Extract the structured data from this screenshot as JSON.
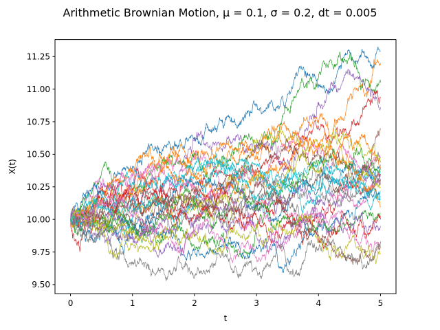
{
  "chart_data": {
    "type": "line",
    "title": "Arithmetic Brownian Motion, μ = 0.1, σ = 0.2, dt = 0.005",
    "xlabel": "t",
    "ylabel": "X(t)",
    "xlim": [
      -0.25,
      5.25
    ],
    "ylim": [
      9.43,
      11.38
    ],
    "x_ticks": [
      0,
      1,
      2,
      3,
      4,
      5
    ],
    "x_tick_labels": [
      "0",
      "1",
      "2",
      "3",
      "4",
      "5"
    ],
    "y_ticks": [
      9.5,
      9.75,
      10.0,
      10.25,
      10.5,
      10.75,
      11.0,
      11.25
    ],
    "y_tick_labels": [
      "9.50",
      "9.75",
      "10.00",
      "10.25",
      "10.50",
      "10.75",
      "11.00",
      "11.25"
    ],
    "grid": false,
    "x0": 10.0,
    "mu": 0.1,
    "sigma": 0.2,
    "dt": 0.005,
    "t_end": 5,
    "num_paths": 30,
    "final_values": [
      11.29,
      11.2,
      11.05,
      10.93,
      10.86,
      10.7,
      10.47,
      10.45,
      10.44,
      10.42,
      10.4,
      10.38,
      10.37,
      10.35,
      10.33,
      10.31,
      10.3,
      10.28,
      10.25,
      10.22,
      10.15,
      10.1,
      10.05,
      10.0,
      9.95,
      9.83,
      9.8,
      9.78,
      9.74,
      10.18
    ],
    "colors": [
      "#1f77b4",
      "#ff7f0e",
      "#2ca02c",
      "#d62728",
      "#9467bd",
      "#8c564b",
      "#e377c2",
      "#7f7f7f",
      "#bcbd22",
      "#17becf"
    ]
  }
}
